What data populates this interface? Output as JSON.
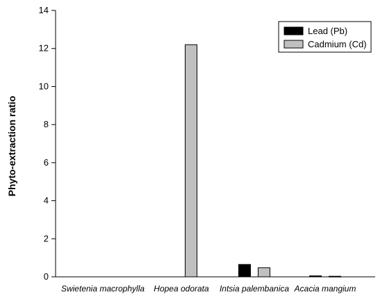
{
  "chart_data": {
    "type": "bar",
    "title": "",
    "xlabel": "",
    "ylabel": "Phyto-extraction ratio",
    "categories": [
      "Swietenia macrophylla",
      "Hopea odorata",
      "Intsia palembanica",
      "Acacia mangium"
    ],
    "series": [
      {
        "name": "Lead (Pb)",
        "color": "#000000",
        "values": [
          0,
          0,
          0.65,
          0.05
        ]
      },
      {
        "name": "Cadmium (Cd)",
        "color": "#c0c0c0",
        "values": [
          0,
          12.2,
          0.48,
          0.03
        ]
      }
    ],
    "ylim": [
      0,
      14
    ],
    "yticks": [
      "0",
      "2",
      "4",
      "6",
      "8",
      "10",
      "12",
      "14"
    ],
    "grid": false,
    "legend_position": "top-right"
  }
}
